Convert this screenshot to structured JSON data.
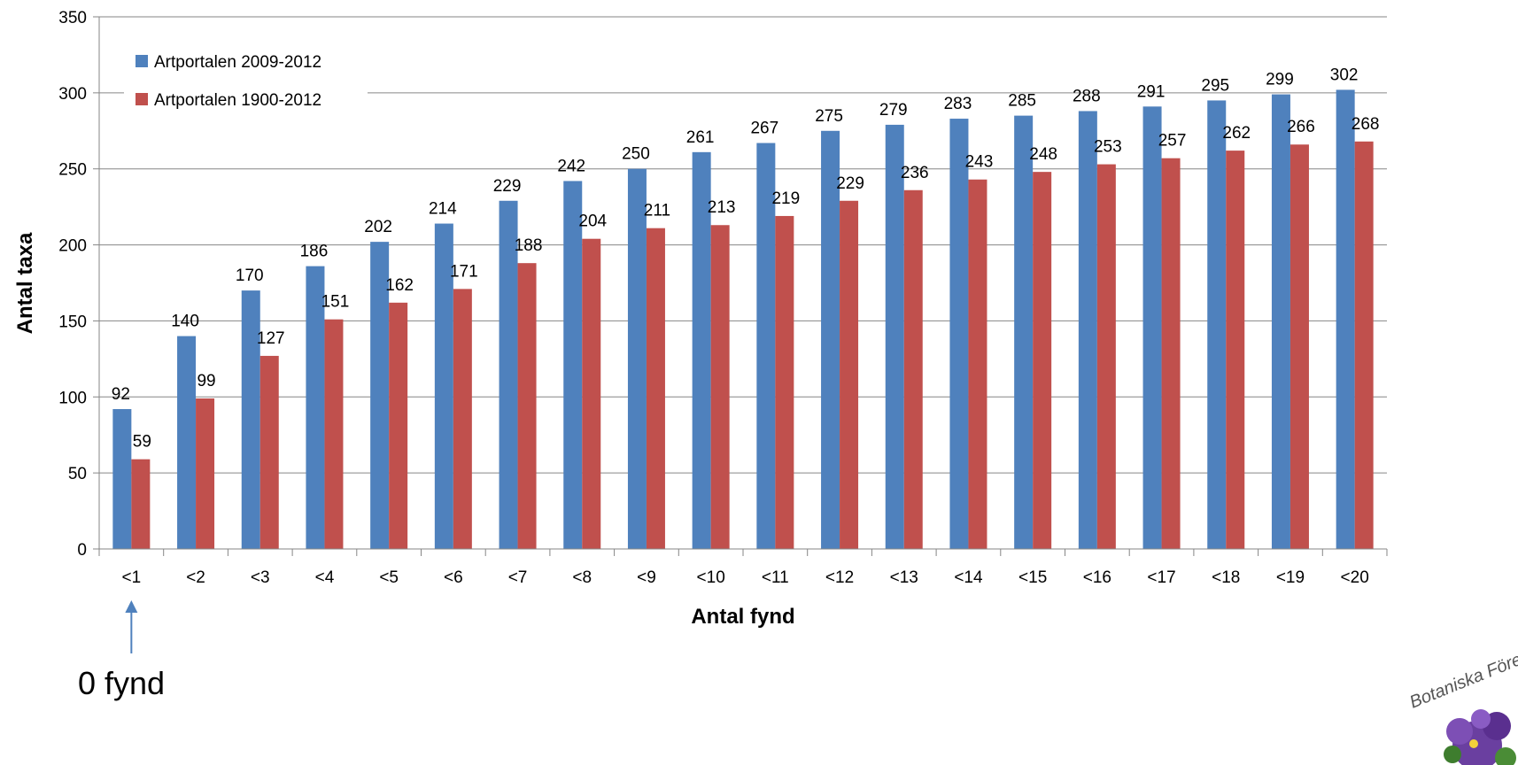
{
  "chart_data": {
    "type": "bar",
    "categories": [
      "<1",
      "<2",
      "<3",
      "<4",
      "<5",
      "<6",
      "<7",
      "<8",
      "<9",
      "<10",
      "<11",
      "<12",
      "<13",
      "<14",
      "<15",
      "<16",
      "<17",
      "<18",
      "<19",
      "<20"
    ],
    "series": [
      {
        "name": "Artportalen 2009-2012",
        "color": "#4F81BD",
        "values": [
          92,
          140,
          170,
          186,
          202,
          214,
          229,
          242,
          250,
          261,
          267,
          275,
          279,
          283,
          285,
          288,
          291,
          295,
          299,
          302
        ]
      },
      {
        "name": "Artportalen 1900-2012",
        "color": "#C0504D",
        "values": [
          59,
          99,
          127,
          151,
          162,
          171,
          188,
          204,
          211,
          213,
          219,
          229,
          236,
          243,
          248,
          253,
          257,
          262,
          266,
          268
        ]
      }
    ],
    "title": "",
    "xlabel": "Antal fynd",
    "ylabel": "Antal taxa",
    "ylim": [
      0,
      350
    ],
    "yticks": [
      0,
      50,
      100,
      150,
      200,
      250,
      300,
      350
    ],
    "grid": true,
    "legend_position": "top-left"
  },
  "annotation": {
    "text": "0 fynd",
    "target_category": "<1"
  },
  "logo": {
    "text": "Botaniska Före",
    "icon": "violet-flower-logo"
  }
}
